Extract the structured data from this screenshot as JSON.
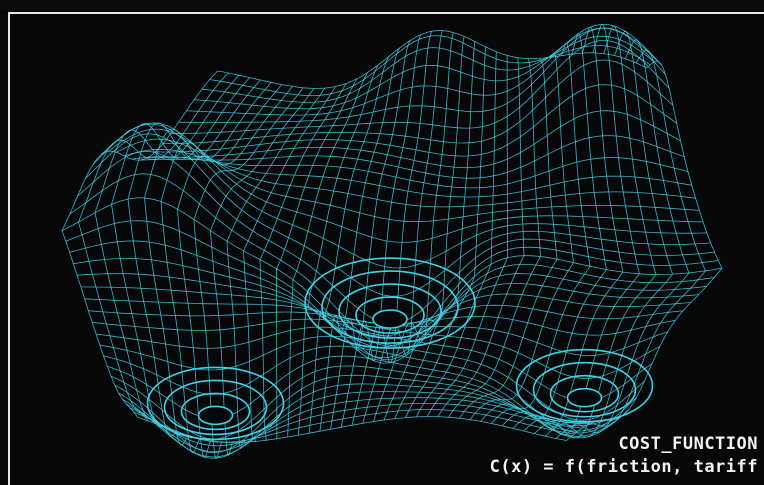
{
  "visual": {
    "subject": "wireframe-cost-surface",
    "colors": {
      "background": "#050708",
      "mesh": "#3fd2e6",
      "mesh_dark": "#0d5763",
      "caption": "#f2f2f2"
    }
  },
  "caption": {
    "label": "COST_FUNCTION",
    "formula": "C(x) = f(friction, tariff"
  }
}
